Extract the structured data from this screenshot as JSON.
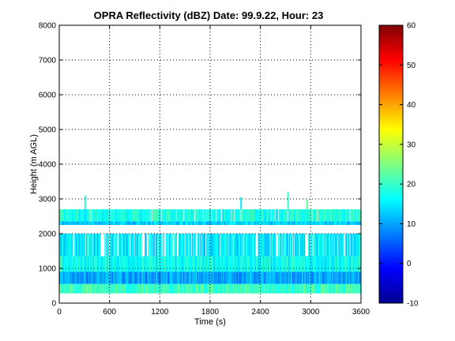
{
  "chart_data": {
    "type": "heatmap",
    "title": "OPRA Reflectivity (dBZ)  Date: 99.9.22, Hour: 23",
    "xlabel": "Time (s)",
    "ylabel": "Height (m AGL)",
    "xlim": [
      0,
      3600
    ],
    "ylim": [
      0,
      8000
    ],
    "x_ticks": [
      "0",
      "600",
      "1200",
      "1800",
      "2400",
      "3000",
      "3600"
    ],
    "y_ticks": [
      "0",
      "1000",
      "2000",
      "3000",
      "4000",
      "5000",
      "6000",
      "7000",
      "8000"
    ],
    "grid": true,
    "grid_style": "dotted",
    "colorbar": {
      "colormap": "jet",
      "range": [
        -10,
        60
      ],
      "ticks": [
        "-10",
        "0",
        "10",
        "20",
        "30",
        "40",
        "50",
        "60"
      ]
    },
    "layers": [
      {
        "height_range": [
          2300,
          2700
        ],
        "dbz": 18,
        "note_sparse_gaps": true
      },
      {
        "height_range": [
          2250,
          2350
        ],
        "dbz": 13
      },
      {
        "height_range": [
          1350,
          2000
        ],
        "dbz": 15
      },
      {
        "height_range": [
          900,
          1350
        ],
        "dbz": 17
      },
      {
        "height_range": [
          550,
          900
        ],
        "dbz": 10
      },
      {
        "height_range": [
          280,
          550
        ],
        "dbz": 20
      }
    ],
    "isolated_echoes": [
      {
        "x": 300,
        "height_range": [
          2700,
          3100
        ],
        "dbz": 19
      },
      {
        "x": 2160,
        "height_range": [
          2700,
          3050
        ],
        "dbz": 15
      },
      {
        "x": 2720,
        "height_range": [
          2700,
          3200
        ],
        "dbz": 20
      },
      {
        "x": 2950,
        "height_range": [
          2700,
          2980
        ],
        "dbz": 23
      }
    ]
  }
}
